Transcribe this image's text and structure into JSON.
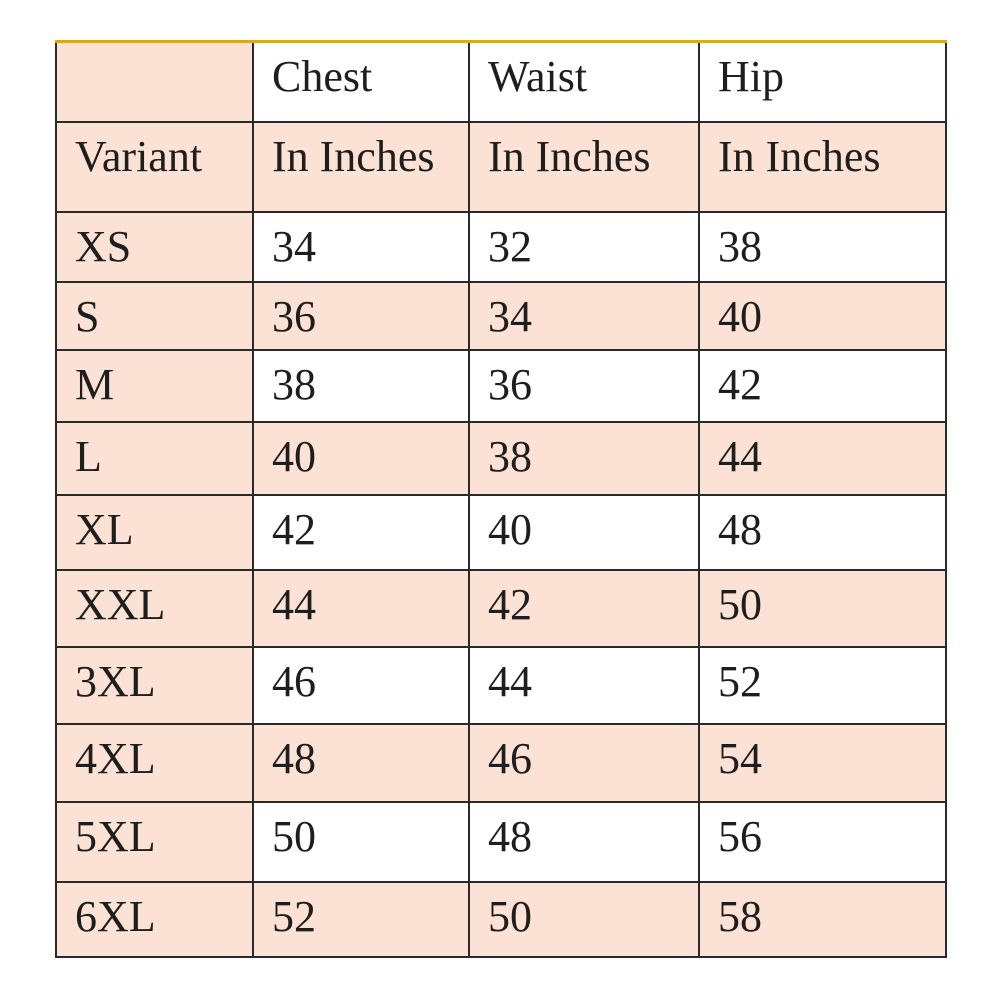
{
  "table": {
    "header_row1": [
      "",
      "Chest",
      "Waist",
      "Hip"
    ],
    "header_row2": [
      "Variant",
      "In Inches",
      "In Inches",
      "In Inches"
    ],
    "rows": [
      [
        "XS",
        "34",
        "32",
        "38"
      ],
      [
        "S",
        "36",
        "34",
        "40"
      ],
      [
        "M",
        "38",
        "36",
        "42"
      ],
      [
        "L",
        "40",
        "38",
        "44"
      ],
      [
        "XL",
        "42",
        "40",
        "48"
      ],
      [
        "XXL",
        "44",
        "42",
        "50"
      ],
      [
        "3XL",
        "46",
        "44",
        "52"
      ],
      [
        "4XL",
        "48",
        "46",
        "54"
      ],
      [
        "5XL",
        "50",
        "48",
        "56"
      ],
      [
        "6XL",
        "52",
        "50",
        "58"
      ]
    ]
  },
  "colors": {
    "peach": "#fbe2d4",
    "white": "#ffffff",
    "top_border": "#d9a820",
    "grid": "#2a2a2a"
  }
}
